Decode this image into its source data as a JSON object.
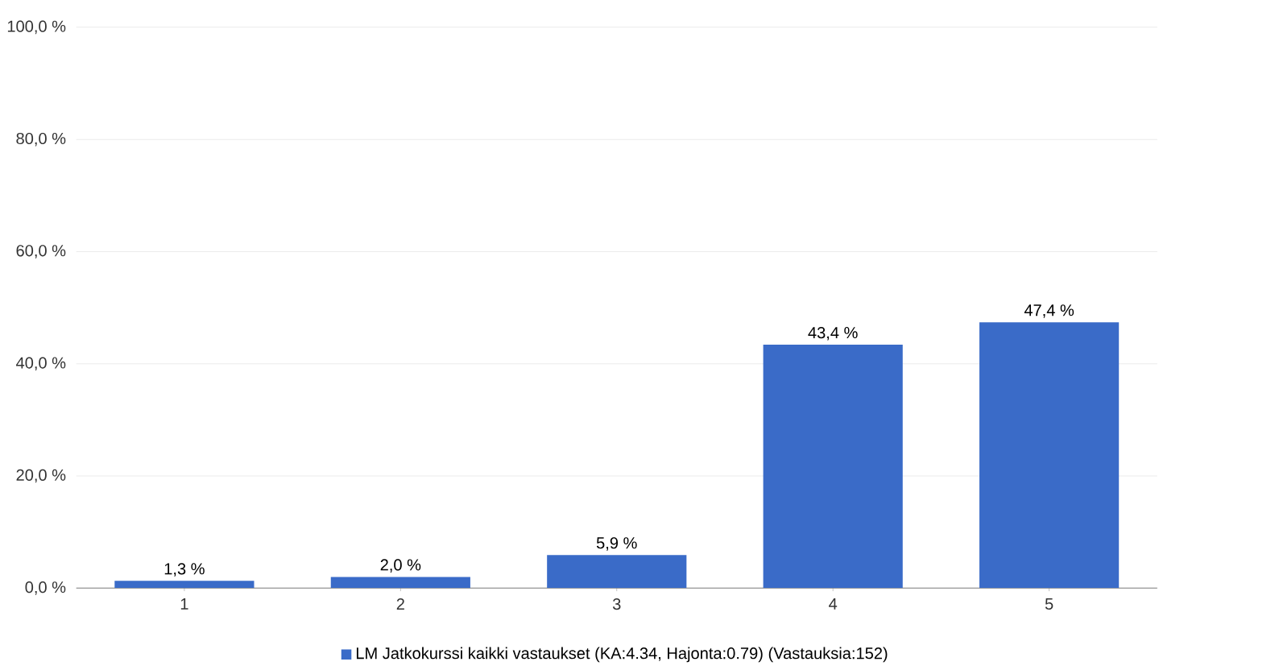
{
  "chart_data": {
    "type": "bar",
    "categories": [
      "1",
      "2",
      "3",
      "4",
      "5"
    ],
    "series": [
      {
        "name": "LM Jatkokurssi kaikki vastaukset (KA:4.34, Hajonta:0.79) (Vastauksia:152)",
        "color": "#3a6bc8",
        "values": [
          1.3,
          2.0,
          5.9,
          43.4,
          47.4
        ],
        "value_labels": [
          "1,3 %",
          "2,0 %",
          "5,9 %",
          "43,4 %",
          "47,4 %"
        ]
      }
    ],
    "ylim": [
      0,
      100
    ],
    "yticks": [
      {
        "value": 0,
        "label": "0,0 %"
      },
      {
        "value": 20,
        "label": "20,0 %"
      },
      {
        "value": 40,
        "label": "40,0 %"
      },
      {
        "value": 60,
        "label": "60,0 %"
      },
      {
        "value": 80,
        "label": "80,0 %"
      },
      {
        "value": 100,
        "label": "100,0 %"
      }
    ],
    "grid": "y",
    "legend": "bottom"
  }
}
